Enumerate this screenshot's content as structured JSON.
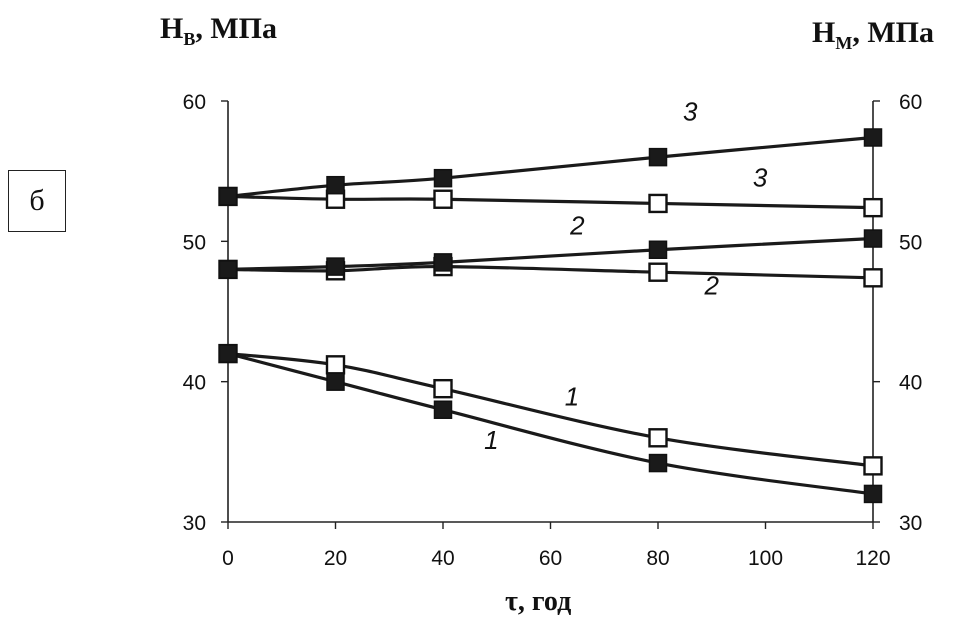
{
  "panel_label": "б",
  "left_axis_title_main": "H",
  "left_axis_title_sub": "B",
  "left_axis_title_unit": ", МПа",
  "right_axis_title_main": "H",
  "right_axis_title_sub": "M",
  "right_axis_title_unit": ", МПа",
  "x_axis_title": "τ, год",
  "chart_data": {
    "type": "line",
    "xlabel": "τ, год",
    "ylabel": "HB, МПа",
    "y2label": "HM, МПа",
    "xlim": [
      0,
      120
    ],
    "ylim": [
      30,
      60
    ],
    "x_ticks": [
      0,
      20,
      40,
      60,
      80,
      100,
      120
    ],
    "y_ticks": [
      30,
      40,
      50,
      60
    ],
    "y2_ticks": [
      30,
      40,
      50,
      60
    ],
    "grid": false,
    "series": [
      {
        "name": "1",
        "marker": "filled-square",
        "x": [
          0,
          20,
          40,
          80,
          120
        ],
        "y": [
          42.0,
          40.0,
          38.0,
          34.2,
          32.0
        ],
        "label": "1",
        "label_pos": [
          49,
          35.2
        ]
      },
      {
        "name": "1",
        "marker": "open-square",
        "x": [
          0,
          20,
          40,
          80,
          120
        ],
        "y": [
          42.0,
          41.2,
          39.5,
          36.0,
          34.0
        ],
        "label": "1",
        "label_pos": [
          64,
          38.3
        ]
      },
      {
        "name": "2",
        "marker": "filled-square",
        "x": [
          0,
          20,
          40,
          80,
          120
        ],
        "y": [
          48.0,
          48.2,
          48.5,
          49.4,
          50.2
        ],
        "label": "2",
        "label_pos": [
          65,
          50.5
        ]
      },
      {
        "name": "2",
        "marker": "open-square",
        "x": [
          0,
          20,
          40,
          80,
          120
        ],
        "y": [
          48.0,
          47.9,
          48.2,
          47.8,
          47.4
        ],
        "label": "2",
        "label_pos": [
          90,
          46.2
        ]
      },
      {
        "name": "3",
        "marker": "filled-square",
        "x": [
          0,
          20,
          40,
          80,
          120
        ],
        "y": [
          53.2,
          54.0,
          54.5,
          56.0,
          57.4
        ],
        "label": "3",
        "label_pos": [
          86,
          58.6
        ]
      },
      {
        "name": "3",
        "marker": "open-square",
        "x": [
          0,
          20,
          40,
          80,
          120
        ],
        "y": [
          53.2,
          53.0,
          53.0,
          52.7,
          52.4
        ],
        "label": "3",
        "label_pos": [
          99,
          53.9
        ]
      }
    ],
    "colors": {
      "line": "#1a1a1a",
      "filled_marker": "#1a1a1a",
      "open_marker_fill": "#ffffff"
    }
  }
}
